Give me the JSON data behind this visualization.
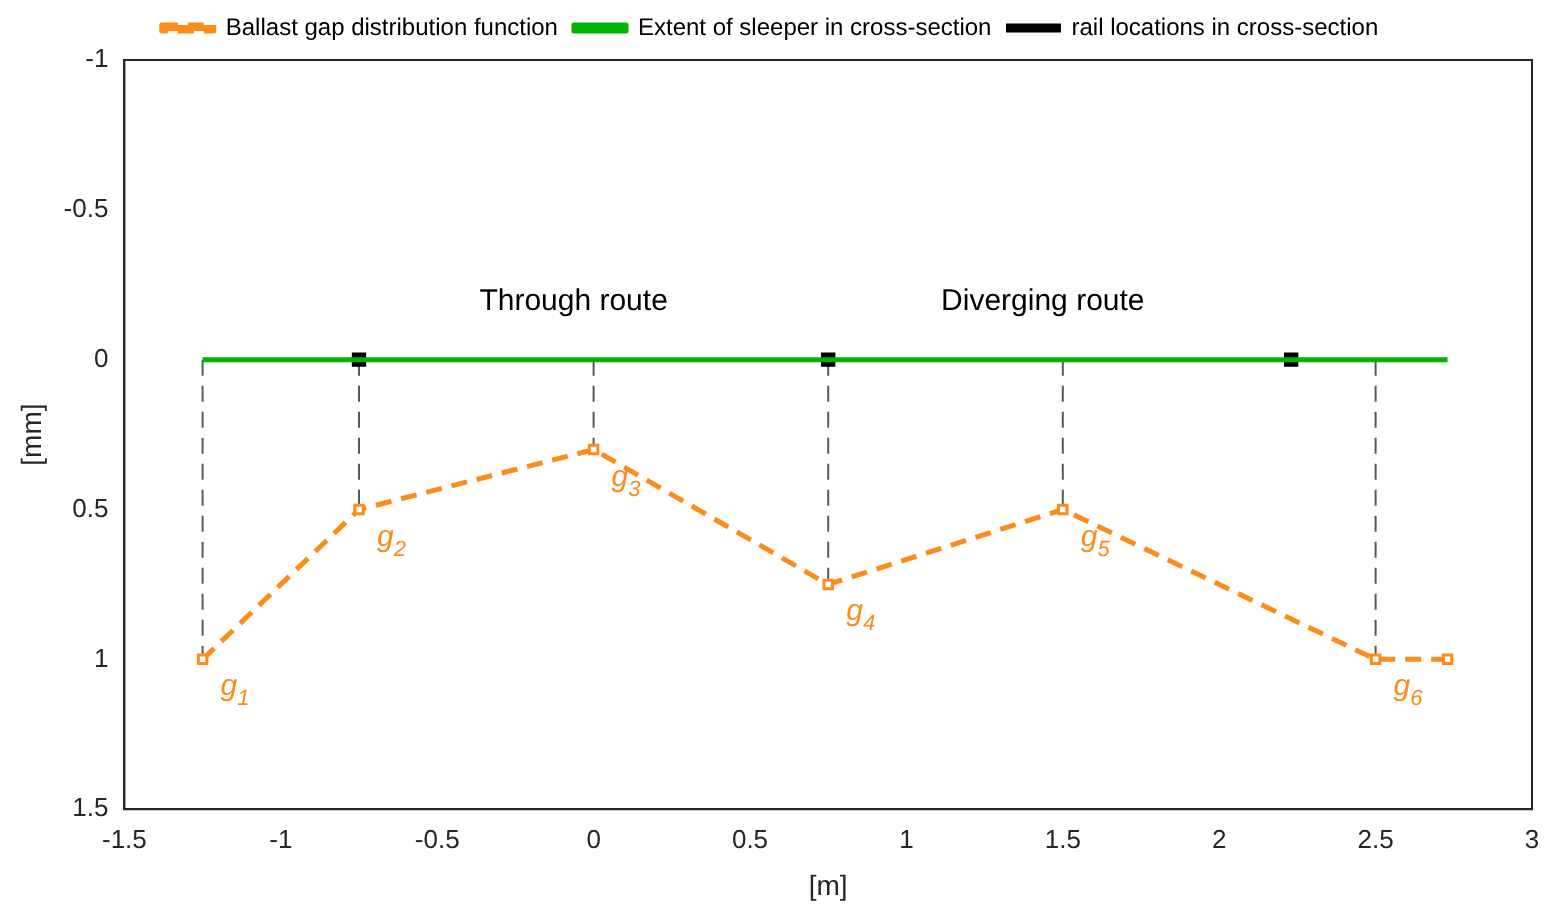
{
  "chart_data": {
    "type": "line",
    "xlabel": "[m]",
    "ylabel": "[mm]",
    "legend": "top",
    "grid": false,
    "xlim": [
      -1.5,
      3
    ],
    "xticks": [
      -1.5,
      -1,
      -0.5,
      0,
      0.5,
      1,
      1.5,
      2,
      2.5,
      3
    ],
    "ylim": [
      1.5,
      -1
    ],
    "yticks": [
      -1,
      -0.5,
      0,
      0.5,
      1,
      1.5
    ],
    "series": [
      {
        "name": "Ballast gap distribution function",
        "type": "line",
        "color": "#ff8c1a",
        "marker": "square",
        "line_style": "dashed",
        "x": [
          -1.25,
          -0.75,
          0,
          0.75,
          1.5,
          2.5,
          2.73
        ],
        "values": [
          1,
          0.5,
          0.3,
          0.75,
          0.5,
          1,
          1
        ]
      },
      {
        "name": "Extent of sleeper in cross-section",
        "type": "line",
        "color": "#00b400",
        "marker": "none",
        "line_style": "solid",
        "x": [
          -1.25,
          2.73
        ],
        "values": [
          0,
          0
        ]
      },
      {
        "name": "rail locations in cross-section",
        "type": "scatter",
        "color": "#000000",
        "marker": "square",
        "x": [
          -0.75,
          0.75,
          2.23
        ],
        "values": [
          0,
          0,
          0
        ]
      },
      {
        "type": "line",
        "color": "#595959",
        "marker": "none",
        "line_style": "dashed",
        "x": [
          -1.25,
          -1.25
        ],
        "values": [
          0,
          1
        ]
      },
      {
        "type": "line",
        "color": "#595959",
        "marker": "none",
        "line_style": "dashed",
        "x": [
          -0.75,
          -0.75
        ],
        "values": [
          0,
          0.5
        ]
      },
      {
        "type": "line",
        "color": "#595959",
        "marker": "none",
        "line_style": "dashed",
        "x": [
          0,
          0
        ],
        "values": [
          0,
          0.3
        ]
      },
      {
        "type": "line",
        "color": "#595959",
        "marker": "none",
        "line_style": "dashed",
        "x": [
          0.75,
          0.75
        ],
        "values": [
          0,
          0.75
        ]
      },
      {
        "type": "line",
        "color": "#595959",
        "marker": "none",
        "line_style": "dashed",
        "x": [
          1.5,
          1.5
        ],
        "values": [
          0,
          0.5
        ]
      },
      {
        "type": "line",
        "color": "#595959",
        "marker": "none",
        "line_style": "dashed",
        "x": [
          2.5,
          2.5
        ],
        "values": [
          0,
          1
        ]
      }
    ],
    "annotations": [
      "Through route",
      "Diverging route",
      {
        "text": "g$_{1}$",
        "x": -1.25,
        "y": 1
      },
      {
        "text": "g$_{2}$",
        "x": -0.75,
        "y": 0.5
      },
      {
        "text": "g$_{3}$",
        "x": 0,
        "y": 0.3
      },
      {
        "text": "g$_{4}$",
        "x": 0.75,
        "y": 0.75
      },
      {
        "text": "g$_{5}$",
        "x": 1.5,
        "y": 0.5
      },
      {
        "text": "g$_{6}$",
        "x": 2.5,
        "y": 1
      }
    ]
  }
}
